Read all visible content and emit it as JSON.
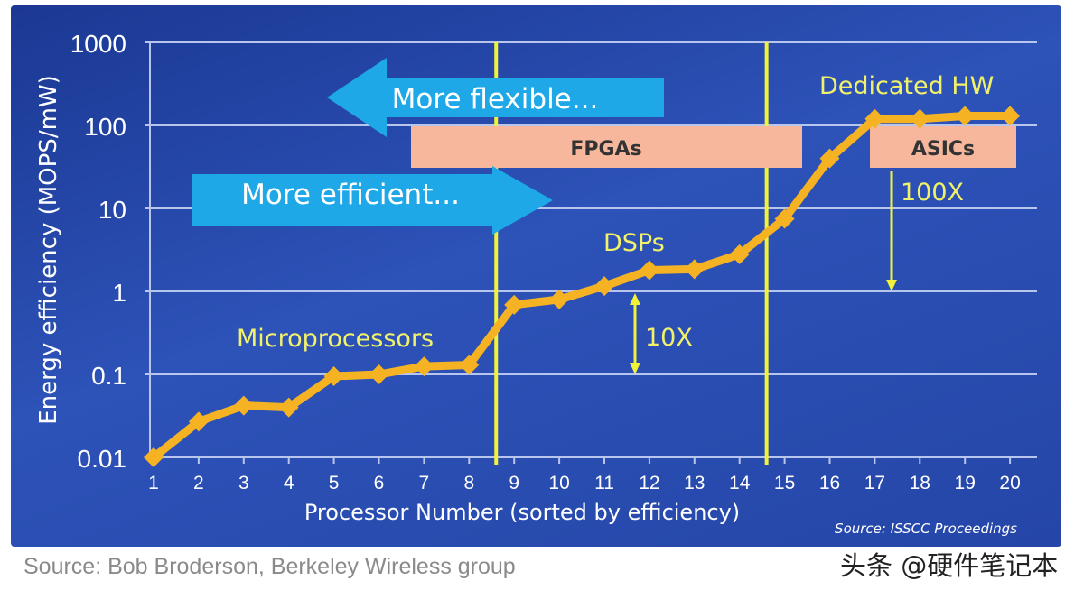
{
  "chart_data": {
    "type": "line",
    "title": "",
    "xlabel": "Processor Number (sorted by efficiency)",
    "ylabel": "Energy efficiency (MOPS/mW)",
    "yscale": "log",
    "ylim": [
      0.01,
      1000
    ],
    "xlim": [
      1,
      20
    ],
    "x": [
      1,
      2,
      3,
      4,
      5,
      6,
      7,
      8,
      9,
      10,
      11,
      12,
      13,
      14,
      15,
      16,
      17,
      18,
      19,
      20
    ],
    "values": [
      0.01,
      0.027,
      0.042,
      0.04,
      0.095,
      0.1,
      0.125,
      0.13,
      0.69,
      0.8,
      1.16,
      1.8,
      1.85,
      2.8,
      7.5,
      40,
      120,
      120,
      130,
      130
    ],
    "yticks": [
      "1000",
      "100",
      "10",
      "1",
      "0.1",
      "0.01"
    ],
    "xticks": [
      "1",
      "2",
      "3",
      "4",
      "5",
      "6",
      "7",
      "8",
      "9",
      "10",
      "11",
      "12",
      "13",
      "14",
      "15",
      "16",
      "17",
      "18",
      "19",
      "20"
    ],
    "grid": true,
    "dividers_x": [
      8.6,
      14.6
    ],
    "annotations": {
      "flexible": "More flexible...",
      "efficient": "More efficient...",
      "fpga": "FPGAs",
      "asic": "ASICs",
      "dedicated": "Dedicated HW",
      "dsp": "DSPs",
      "micro": "Microprocessors",
      "ten": "10X",
      "hundred": "100X",
      "source": "Source: ISSCC Proceedings"
    },
    "colors": {
      "line": "#f5b323",
      "yellow": "#f2f23a",
      "box": "#f6b79c",
      "arrow": "#1ea8e8"
    }
  },
  "footer": "Source: Bob Broderson, Berkeley Wireless group",
  "watermark": "头条 @硬件笔记本"
}
